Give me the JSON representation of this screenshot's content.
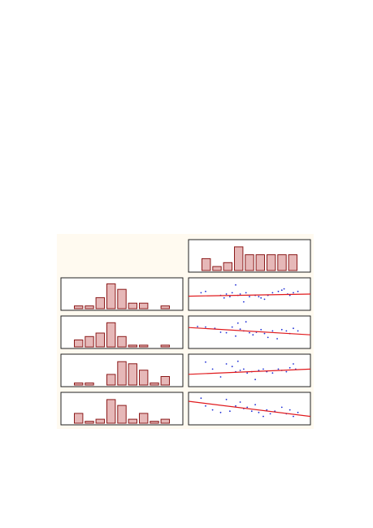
{
  "colors": {
    "background": "#fffaf0",
    "bar_fill": "#e6b8b8",
    "bar_stroke": "#8b1a1a",
    "point": "#1f2fd6",
    "fit_line": "#e0191c"
  },
  "chart_data": [
    {
      "type": "bar",
      "id": "hist-top",
      "values": [
        3,
        1,
        2,
        6,
        4,
        4,
        4,
        4,
        4
      ],
      "ylim": [
        0,
        7
      ]
    },
    {
      "type": "bar",
      "id": "hist-row1",
      "values": [
        1,
        1,
        4,
        9,
        7,
        2,
        2,
        0,
        1
      ],
      "ylim": [
        0,
        10
      ]
    },
    {
      "type": "bar",
      "id": "hist-row2",
      "values": [
        2,
        3,
        4,
        7,
        3,
        0.5,
        0.5,
        0,
        0.5
      ],
      "ylim": [
        0,
        8
      ]
    },
    {
      "type": "bar",
      "id": "hist-row3",
      "values": [
        0.5,
        0.5,
        0,
        2.5,
        5.5,
        5,
        3.5,
        0.5,
        2
      ],
      "ylim": [
        0,
        6.5
      ]
    },
    {
      "type": "bar",
      "id": "hist-row4",
      "values": [
        2.5,
        0.5,
        1,
        6,
        4.5,
        1,
        2.5,
        0.5,
        1
      ],
      "ylim": [
        0,
        7
      ]
    },
    {
      "type": "scatter",
      "id": "scatter-row1",
      "xlim": [
        0,
        1
      ],
      "ylim": [
        0,
        1
      ],
      "points": [
        [
          0.08,
          0.55
        ],
        [
          0.12,
          0.6
        ],
        [
          0.25,
          0.45
        ],
        [
          0.28,
          0.35
        ],
        [
          0.3,
          0.5
        ],
        [
          0.33,
          0.4
        ],
        [
          0.35,
          0.55
        ],
        [
          0.38,
          0.85
        ],
        [
          0.4,
          0.45
        ],
        [
          0.42,
          0.5
        ],
        [
          0.45,
          0.2
        ],
        [
          0.47,
          0.55
        ],
        [
          0.5,
          0.4
        ],
        [
          0.55,
          0.45
        ],
        [
          0.58,
          0.4
        ],
        [
          0.6,
          0.35
        ],
        [
          0.63,
          0.3
        ],
        [
          0.66,
          0.45
        ],
        [
          0.7,
          0.55
        ],
        [
          0.75,
          0.6
        ],
        [
          0.78,
          0.65
        ],
        [
          0.8,
          0.7
        ],
        [
          0.83,
          0.5
        ],
        [
          0.85,
          0.45
        ],
        [
          0.88,
          0.55
        ],
        [
          0.92,
          0.6
        ]
      ],
      "fit": [
        0.42,
        0.5
      ]
    },
    {
      "type": "scatter",
      "id": "scatter-row2",
      "xlim": [
        0,
        1
      ],
      "ylim": [
        0,
        1
      ],
      "points": [
        [
          0.05,
          0.72
        ],
        [
          0.12,
          0.7
        ],
        [
          0.2,
          0.65
        ],
        [
          0.25,
          0.5
        ],
        [
          0.3,
          0.48
        ],
        [
          0.35,
          0.7
        ],
        [
          0.38,
          0.35
        ],
        [
          0.4,
          0.85
        ],
        [
          0.42,
          0.62
        ],
        [
          0.45,
          0.55
        ],
        [
          0.47,
          0.9
        ],
        [
          0.5,
          0.48
        ],
        [
          0.53,
          0.4
        ],
        [
          0.56,
          0.5
        ],
        [
          0.6,
          0.6
        ],
        [
          0.63,
          0.45
        ],
        [
          0.66,
          0.3
        ],
        [
          0.7,
          0.55
        ],
        [
          0.74,
          0.25
        ],
        [
          0.78,
          0.6
        ],
        [
          0.82,
          0.55
        ],
        [
          0.85,
          0.45
        ],
        [
          0.88,
          0.65
        ],
        [
          0.92,
          0.55
        ]
      ],
      "fit": [
        0.68,
        0.4
      ]
    },
    {
      "type": "scatter",
      "id": "scatter-row3",
      "xlim": [
        0,
        1
      ],
      "ylim": [
        0,
        1
      ],
      "points": [
        [
          0.12,
          0.82
        ],
        [
          0.18,
          0.55
        ],
        [
          0.25,
          0.25
        ],
        [
          0.3,
          0.75
        ],
        [
          0.35,
          0.65
        ],
        [
          0.38,
          0.45
        ],
        [
          0.4,
          0.85
        ],
        [
          0.42,
          0.5
        ],
        [
          0.45,
          0.55
        ],
        [
          0.48,
          0.4
        ],
        [
          0.52,
          0.45
        ],
        [
          0.55,
          0.15
        ],
        [
          0.58,
          0.5
        ],
        [
          0.62,
          0.55
        ],
        [
          0.65,
          0.45
        ],
        [
          0.7,
          0.4
        ],
        [
          0.75,
          0.55
        ],
        [
          0.78,
          0.5
        ],
        [
          0.82,
          0.45
        ],
        [
          0.85,
          0.6
        ],
        [
          0.88,
          0.75
        ],
        [
          0.9,
          0.55
        ]
      ],
      "fit": [
        0.35,
        0.55
      ]
    },
    {
      "type": "scatter",
      "id": "scatter-row4",
      "xlim": [
        0,
        1
      ],
      "ylim": [
        0,
        1
      ],
      "points": [
        [
          0.08,
          0.9
        ],
        [
          0.12,
          0.6
        ],
        [
          0.18,
          0.45
        ],
        [
          0.25,
          0.35
        ],
        [
          0.3,
          0.85
        ],
        [
          0.33,
          0.4
        ],
        [
          0.38,
          0.6
        ],
        [
          0.42,
          0.75
        ],
        [
          0.45,
          0.5
        ],
        [
          0.48,
          0.55
        ],
        [
          0.52,
          0.4
        ],
        [
          0.55,
          0.65
        ],
        [
          0.58,
          0.35
        ],
        [
          0.62,
          0.2
        ],
        [
          0.65,
          0.45
        ],
        [
          0.68,
          0.3
        ],
        [
          0.72,
          0.4
        ],
        [
          0.78,
          0.55
        ],
        [
          0.82,
          0.3
        ],
        [
          0.85,
          0.45
        ],
        [
          0.88,
          0.2
        ],
        [
          0.92,
          0.35
        ]
      ],
      "fit": [
        0.78,
        0.2
      ]
    }
  ]
}
